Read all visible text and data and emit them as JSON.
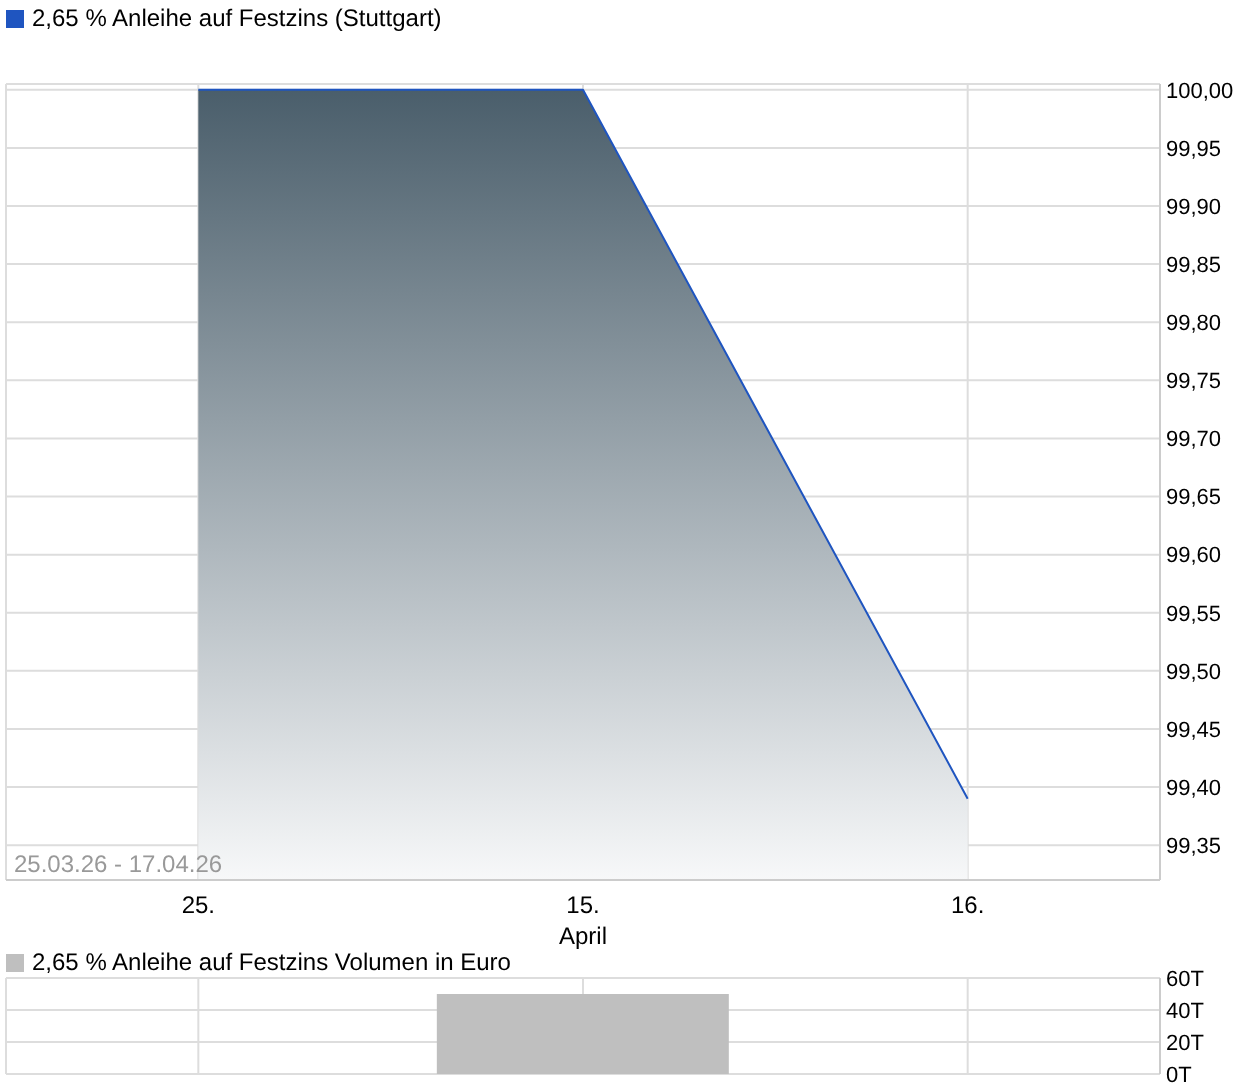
{
  "chart_data": [
    {
      "type": "area",
      "categories": [
        "25.",
        "15.",
        "16."
      ],
      "xlabel": "April",
      "series": [
        {
          "name": "2,65 % Anleihe auf Festzins (Stuttgart)",
          "color": "#1f55c0",
          "values": [
            100.0,
            100.0,
            99.39
          ]
        }
      ],
      "ylim": [
        99.32,
        100.005
      ],
      "yticks": [
        {
          "value": 99.35,
          "label": "99,35"
        },
        {
          "value": 99.4,
          "label": "99,40"
        },
        {
          "value": 99.45,
          "label": "99,45"
        },
        {
          "value": 99.5,
          "label": "99,50"
        },
        {
          "value": 99.55,
          "label": "99,55"
        },
        {
          "value": 99.6,
          "label": "99,60"
        },
        {
          "value": 99.65,
          "label": "99,65"
        },
        {
          "value": 99.7,
          "label": "99,70"
        },
        {
          "value": 99.75,
          "label": "99,75"
        },
        {
          "value": 99.8,
          "label": "99,80"
        },
        {
          "value": 99.85,
          "label": "99,85"
        },
        {
          "value": 99.9,
          "label": "99,90"
        },
        {
          "value": 99.95,
          "label": "99,95"
        },
        {
          "value": 100.0,
          "label": "100,00"
        }
      ],
      "annotations": [
        "25.03.26 - 17.04.26"
      ],
      "grid": true,
      "legend": "top left"
    },
    {
      "type": "bar",
      "categories": [
        "25.",
        "15.",
        "16."
      ],
      "series": [
        {
          "name": "2,65 % Anleihe auf Festzins Volumen in Euro",
          "color": "#bfbfbf",
          "values": [
            null,
            50,
            null
          ]
        }
      ],
      "ylim": [
        0,
        60
      ],
      "yticks": [
        {
          "value": 0,
          "label": "0T"
        },
        {
          "value": 20,
          "label": "20T"
        },
        {
          "value": 40,
          "label": "40T"
        },
        {
          "value": 60,
          "label": "60T"
        }
      ],
      "grid": true,
      "legend": "top left",
      "tick_labels": "y"
    }
  ]
}
